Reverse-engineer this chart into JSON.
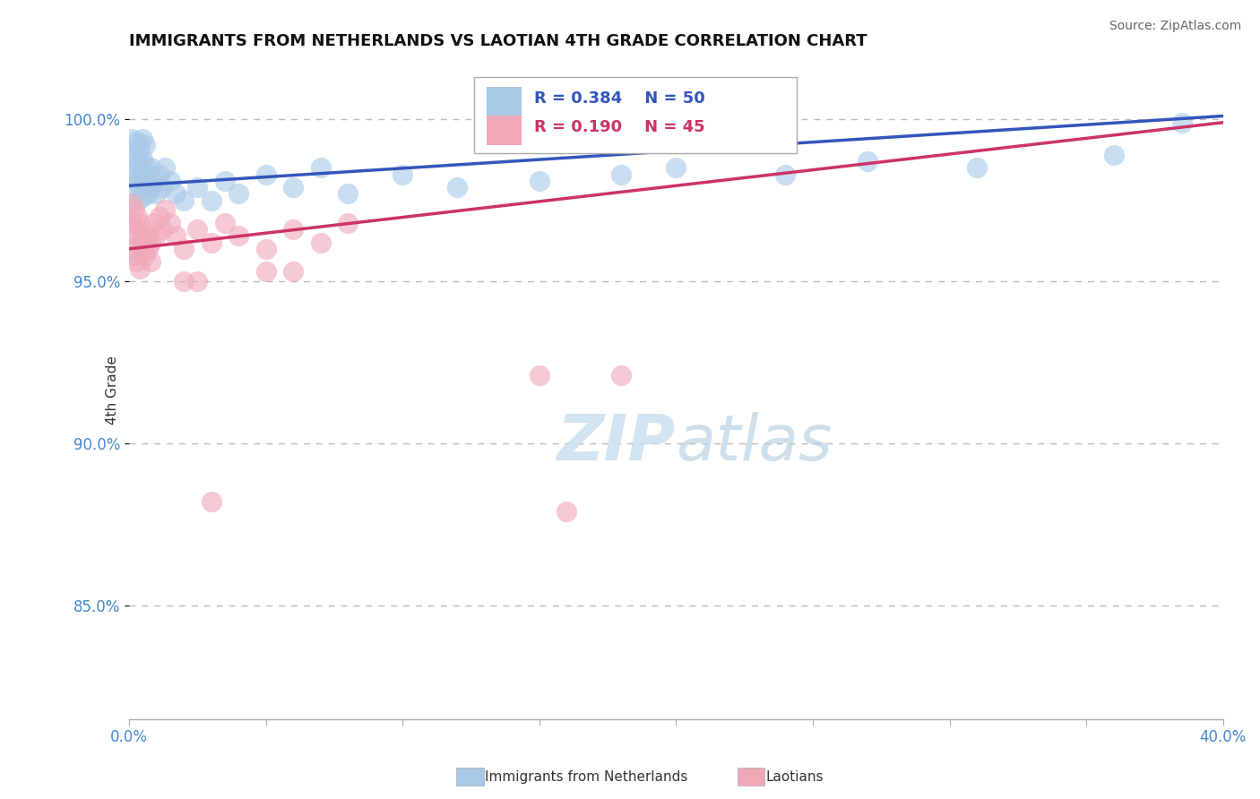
{
  "title": "IMMIGRANTS FROM NETHERLANDS VS LAOTIAN 4TH GRADE CORRELATION CHART",
  "source": "Source: ZipAtlas.com",
  "ylabel": "4th Grade",
  "xlim": [
    0.0,
    0.4
  ],
  "ylim": [
    0.815,
    1.018
  ],
  "yticks": [
    0.85,
    0.9,
    0.95,
    1.0
  ],
  "yticklabels": [
    "85.0%",
    "90.0%",
    "95.0%",
    "100.0%"
  ],
  "xtick_positions": [
    0.0,
    0.05,
    0.1,
    0.15,
    0.2,
    0.25,
    0.3,
    0.35,
    0.4
  ],
  "blue_R": 0.384,
  "blue_N": 50,
  "pink_R": 0.19,
  "pink_N": 45,
  "blue_color": "#A8C8E8",
  "pink_color": "#F0A8B8",
  "blue_line_color": "#3355BB",
  "pink_line_color": "#CC3366",
  "legend_blue_label": "Immigrants from Netherlands",
  "legend_pink_label": "Laotians",
  "blue_x": [
    0.001,
    0.001,
    0.001,
    0.002,
    0.002,
    0.002,
    0.003,
    0.003,
    0.003,
    0.003,
    0.004,
    0.004,
    0.004,
    0.005,
    0.005,
    0.005,
    0.005,
    0.006,
    0.006,
    0.006,
    0.007,
    0.007,
    0.008,
    0.008,
    0.009,
    0.01,
    0.011,
    0.012,
    0.013,
    0.015,
    0.017,
    0.02,
    0.025,
    0.03,
    0.035,
    0.04,
    0.05,
    0.06,
    0.07,
    0.08,
    0.1,
    0.12,
    0.15,
    0.18,
    0.2,
    0.24,
    0.27,
    0.31,
    0.36,
    0.385
  ],
  "blue_y": [
    0.982,
    0.988,
    0.994,
    0.978,
    0.984,
    0.99,
    0.975,
    0.981,
    0.987,
    0.993,
    0.979,
    0.985,
    0.991,
    0.976,
    0.982,
    0.988,
    0.994,
    0.98,
    0.986,
    0.992,
    0.977,
    0.983,
    0.979,
    0.985,
    0.981,
    0.977,
    0.983,
    0.979,
    0.985,
    0.981,
    0.977,
    0.975,
    0.979,
    0.975,
    0.981,
    0.977,
    0.983,
    0.979,
    0.985,
    0.977,
    0.983,
    0.979,
    0.981,
    0.983,
    0.985,
    0.983,
    0.987,
    0.985,
    0.989,
    0.999
  ],
  "pink_x": [
    0.001,
    0.001,
    0.001,
    0.002,
    0.002,
    0.002,
    0.003,
    0.003,
    0.003,
    0.004,
    0.004,
    0.004,
    0.005,
    0.005,
    0.006,
    0.006,
    0.007,
    0.007,
    0.008,
    0.008,
    0.009,
    0.01,
    0.011,
    0.012,
    0.013,
    0.015,
    0.017,
    0.02,
    0.025,
    0.03,
    0.035,
    0.04,
    0.05,
    0.06,
    0.07,
    0.08,
    0.05,
    0.06,
    0.15,
    0.18,
    0.02,
    0.025,
    0.03,
    0.16,
    0.2
  ],
  "pink_y": [
    0.968,
    0.974,
    0.96,
    0.966,
    0.972,
    0.958,
    0.964,
    0.97,
    0.956,
    0.962,
    0.968,
    0.954,
    0.96,
    0.966,
    0.962,
    0.958,
    0.964,
    0.96,
    0.956,
    0.962,
    0.968,
    0.964,
    0.97,
    0.966,
    0.972,
    0.968,
    0.964,
    0.96,
    0.966,
    0.962,
    0.968,
    0.964,
    0.96,
    0.966,
    0.962,
    0.968,
    0.953,
    0.953,
    0.921,
    0.921,
    0.95,
    0.95,
    0.882,
    0.879,
    0.998
  ],
  "background_color": "#ffffff",
  "grid_color": "#bbbbbb"
}
